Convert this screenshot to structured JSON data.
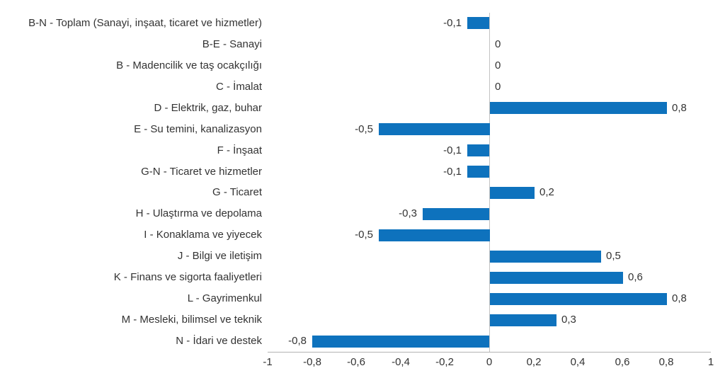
{
  "chart_data": {
    "type": "bar",
    "orientation": "horizontal",
    "title": "",
    "xlabel": "",
    "ylabel": "",
    "grid": false,
    "legend": false,
    "xlim": [
      -1,
      1
    ],
    "categories": [
      "B-N - Toplam (Sanayi, inşaat, ticaret ve hizmetler)",
      "B-E - Sanayi",
      "B - Madencilik ve taş ocakçılığı",
      "C - İmalat",
      "D - Elektrik, gaz, buhar",
      "E - Su temini, kanalizasyon",
      "F - İnşaat",
      "G-N - Ticaret ve hizmetler",
      "G - Ticaret",
      "H - Ulaştırma ve depolama",
      "I - Konaklama ve yiyecek",
      "J - Bilgi ve iletişim",
      "K - Finans ve sigorta faaliyetleri",
      "L - Gayrimenkul",
      "M - Mesleki, bilimsel ve teknik",
      "N - İdari ve destek"
    ],
    "values": [
      -0.1,
      0,
      0,
      0,
      0.8,
      -0.5,
      -0.1,
      -0.1,
      0.2,
      -0.3,
      -0.5,
      0.5,
      0.6,
      0.8,
      0.3,
      -0.8
    ],
    "value_labels": [
      "-0,1",
      "0",
      "0",
      "0",
      "0,8",
      "-0,5",
      "-0,1",
      "-0,1",
      "0,2",
      "-0,3",
      "-0,5",
      "0,5",
      "0,6",
      "0,8",
      "0,3",
      "-0,8"
    ],
    "x_tick_values": [
      -1,
      -0.8,
      -0.6,
      -0.4,
      -0.2,
      0,
      0.2,
      0.4,
      0.6,
      0.8,
      1
    ],
    "x_tick_labels": [
      "-1",
      "-0,8",
      "-0,6",
      "-0,4",
      "-0,2",
      "0",
      "0,2",
      "0,4",
      "0,6",
      "0,8",
      "1"
    ],
    "bar_color": "#0e72bd",
    "zero_line_color": "#c2c2c2",
    "axis_line_color": "#b3b3b3",
    "text_color": "#333333"
  }
}
